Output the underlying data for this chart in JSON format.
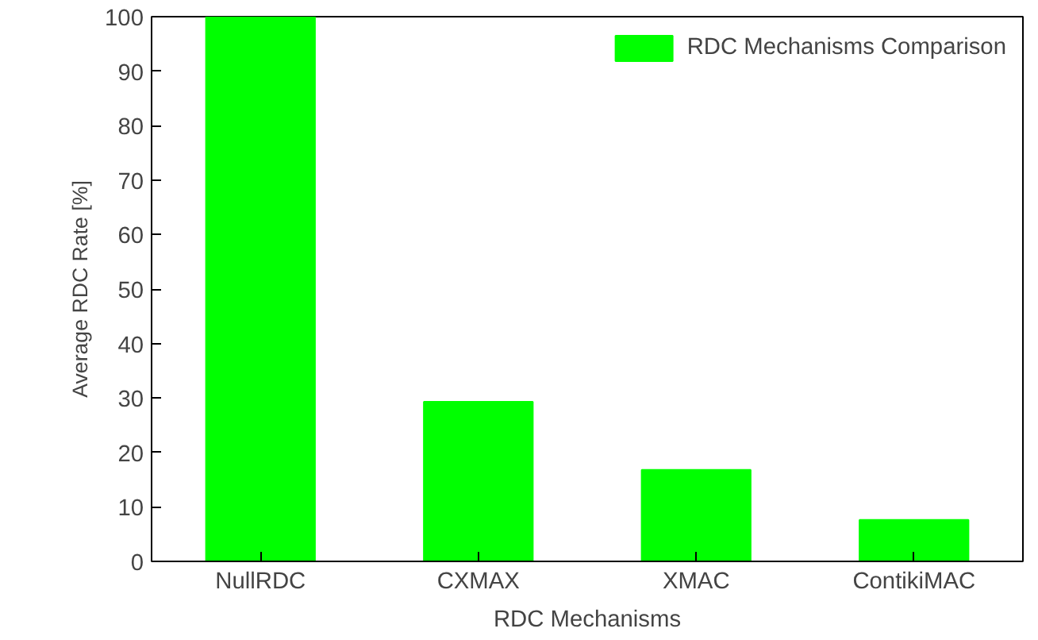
{
  "chart_data": {
    "type": "bar",
    "xlabel": "RDC Mechanisms",
    "ylabel": "Average RDC Rate [%]",
    "categories": [
      "NullRDC",
      "CXMAX",
      "XMAC",
      "ContikiMAC"
    ],
    "series": [
      {
        "name": "RDC Mechanisms Comparison",
        "color": "#00ff00",
        "values": [
          100,
          29.3,
          16.8,
          7.6
        ]
      }
    ],
    "ylim": [
      0,
      100
    ],
    "yticks": [
      0,
      10,
      20,
      30,
      40,
      50,
      60,
      70,
      80,
      90,
      100
    ],
    "grid": false,
    "legend": "top right"
  }
}
